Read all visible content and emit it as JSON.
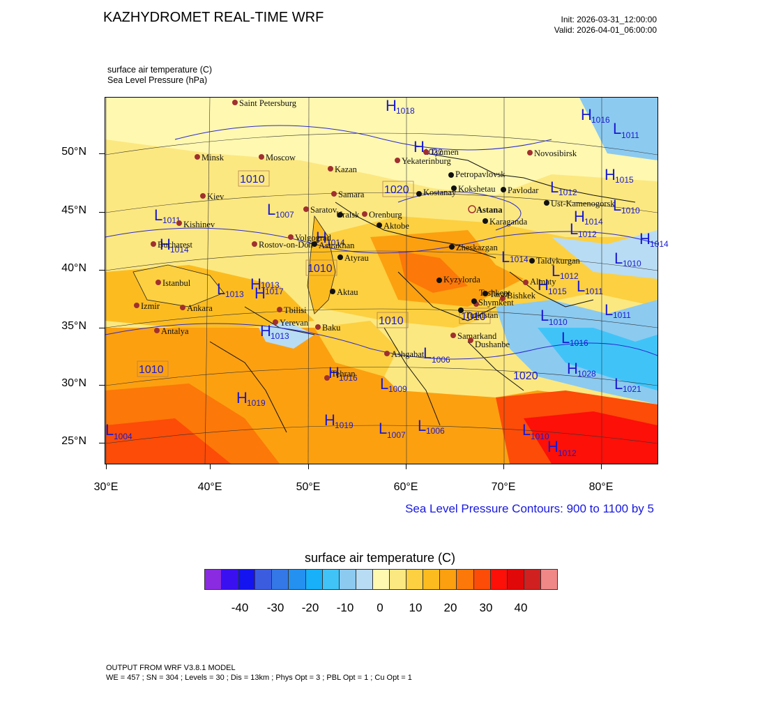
{
  "header": {
    "title": "KAZHYDROMET REAL-TIME WRF",
    "init": "Init: 2026-03-31_12:00:00",
    "valid": "Valid: 2026-04-01_06:00:00"
  },
  "variables": {
    "line1": "surface air temperature   (C)",
    "line2": "Sea Level Pressure   (hPa)"
  },
  "axes": {
    "lat_labels": [
      "50°N",
      "45°N",
      "40°N",
      "35°N",
      "30°N",
      "25°N"
    ],
    "lon_labels": [
      "30°E",
      "40°E",
      "50°E",
      "60°E",
      "70°E",
      "80°E"
    ]
  },
  "contour_note": "Sea Level Pressure Contours: 900 to 1100 by 5",
  "colorbar": {
    "title": "surface air temperature  (C)",
    "colors": [
      "#8a2be2",
      "#3a10f0",
      "#1414f0",
      "#3c5ce0",
      "#3478e8",
      "#2490f0",
      "#18b0f8",
      "#40c4f8",
      "#8ccaf0",
      "#b8dcf4",
      "#fff8b0",
      "#fce880",
      "#fcd040",
      "#fcbc20",
      "#fca010",
      "#fc7808",
      "#fc4c08",
      "#fc1008",
      "#e00808",
      "#d02020",
      "#f08888"
    ],
    "labels": [
      "-40",
      "-30",
      "-20",
      "-10",
      "0",
      "10",
      "20",
      "30",
      "40"
    ]
  },
  "cities_brown": [
    {
      "name": "Saint Petersburg"
    },
    {
      "name": "Minsk"
    },
    {
      "name": "Moscow"
    },
    {
      "name": "Kazan"
    },
    {
      "name": "Kiev"
    },
    {
      "name": "Kishinev"
    },
    {
      "name": "Bucharest"
    },
    {
      "name": "Istanbul"
    },
    {
      "name": "Izmir"
    },
    {
      "name": "Ankara"
    },
    {
      "name": "Antalya"
    },
    {
      "name": "Saratov"
    },
    {
      "name": "Samara"
    },
    {
      "name": "Orenburg"
    },
    {
      "name": "Volgograd"
    },
    {
      "name": "Rostov-on-Don"
    },
    {
      "name": "Tbilisi"
    },
    {
      "name": "Yerevan"
    },
    {
      "name": "Baku"
    },
    {
      "name": "Tehran"
    },
    {
      "name": "Ashgabat"
    },
    {
      "name": "Tyumen"
    },
    {
      "name": "Yekaterinburg"
    },
    {
      "name": "Novosibirsk"
    },
    {
      "name": "Samarkand"
    },
    {
      "name": "Dushanbe"
    },
    {
      "name": "Tashkent"
    },
    {
      "name": "Almaty"
    },
    {
      "name": "Bishkek"
    }
  ],
  "cities_black": [
    {
      "name": "Petropavlovsk"
    },
    {
      "name": "Kostanay"
    },
    {
      "name": "Kokshetau"
    },
    {
      "name": "Pavlodar"
    },
    {
      "name": "Ust-Kamenogorsk"
    },
    {
      "name": "Astana"
    },
    {
      "name": "Karaganda"
    },
    {
      "name": "Uralsk"
    },
    {
      "name": "Aktobe"
    },
    {
      "name": "Astrakhan"
    },
    {
      "name": "Atyrau"
    },
    {
      "name": "Aktau"
    },
    {
      "name": "Zheskazgan"
    },
    {
      "name": "Kyzylorda"
    },
    {
      "name": "Taldykurgan"
    },
    {
      "name": "Taraz"
    },
    {
      "name": "Shymkent"
    },
    {
      "name": "Turkistan"
    }
  ],
  "pressure_centers": [
    {
      "t": "H",
      "v": "1018"
    },
    {
      "t": "H",
      "v": "1016"
    },
    {
      "t": "L",
      "v": "1011"
    },
    {
      "t": "H",
      "v": "1022"
    },
    {
      "t": "L",
      "v": "1012"
    },
    {
      "t": "H",
      "v": "1015"
    },
    {
      "t": "L",
      "v": "1010"
    },
    {
      "t": "L",
      "v": "1011"
    },
    {
      "t": "H",
      "v": "1014"
    },
    {
      "t": "L",
      "v": "1012"
    },
    {
      "t": "L",
      "v": "1007"
    },
    {
      "t": "H",
      "v": "1014"
    },
    {
      "t": "L",
      "v": "1013"
    },
    {
      "t": "H",
      "v": "1013"
    },
    {
      "t": "H",
      "v": "1017"
    },
    {
      "t": "H",
      "v": "1013"
    },
    {
      "t": "H",
      "v": "1019"
    },
    {
      "t": "H",
      "v": "1019"
    },
    {
      "t": "L",
      "v": "1004"
    },
    {
      "t": "L",
      "v": "1009"
    },
    {
      "t": "L",
      "v": "1007"
    },
    {
      "t": "L",
      "v": "1006"
    },
    {
      "t": "L",
      "v": "1006"
    },
    {
      "t": "H",
      "v": "1016"
    },
    {
      "t": "L",
      "v": "1010"
    },
    {
      "t": "L",
      "v": "1011"
    },
    {
      "t": "H",
      "v": "1012"
    },
    {
      "t": "L",
      "v": "1010"
    },
    {
      "t": "H",
      "v": "1015"
    },
    {
      "t": "L",
      "v": "1010"
    },
    {
      "t": "L",
      "v": "1014"
    },
    {
      "t": "L",
      "v": "1011"
    },
    {
      "t": "H",
      "v": "1028"
    },
    {
      "t": "L",
      "v": "1021"
    },
    {
      "t": "H",
      "v": "1014"
    },
    {
      "t": "L",
      "v": "1012"
    },
    {
      "t": "L",
      "v": "1016"
    },
    {
      "t": "H",
      "v": "1014"
    }
  ],
  "isobar_labels": [
    "1010",
    "1020",
    "1010",
    "1010",
    "1010",
    "1010",
    "1020"
  ],
  "footer": {
    "line1": "OUTPUT FROM WRF V3.8.1 MODEL",
    "line2": "WE = 457 ; SN = 304 ; Levels = 30 ; Dis = 13km ; Phys Opt = 3 ; PBL Opt = 1 ; Cu Opt = 1"
  }
}
